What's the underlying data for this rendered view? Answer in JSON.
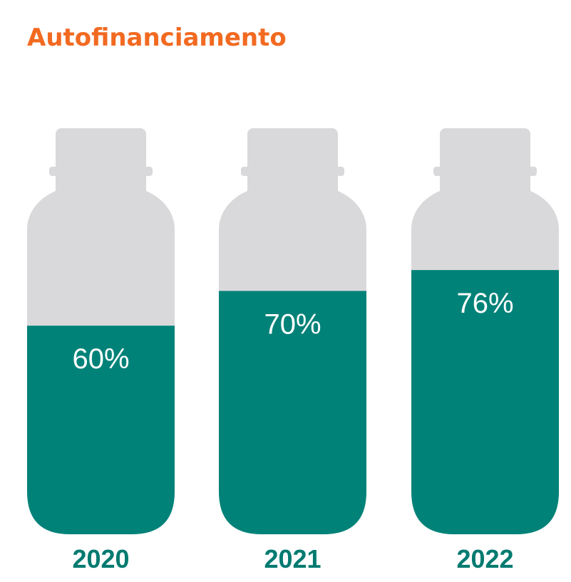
{
  "title": "Autofinanciamento",
  "colors": {
    "title": "#f26a21",
    "fill": "#008278",
    "empty": "#d9d9db",
    "year_label": "#007a70",
    "value_label": "#ffffff"
  },
  "chart_data": {
    "type": "bar",
    "title": "Autofinanciamento",
    "categories": [
      "2020",
      "2021",
      "2022"
    ],
    "values": [
      60,
      70,
      76
    ],
    "value_labels": [
      "60%",
      "70%",
      "76%"
    ],
    "ylim": [
      0,
      100
    ],
    "unit": "%"
  }
}
